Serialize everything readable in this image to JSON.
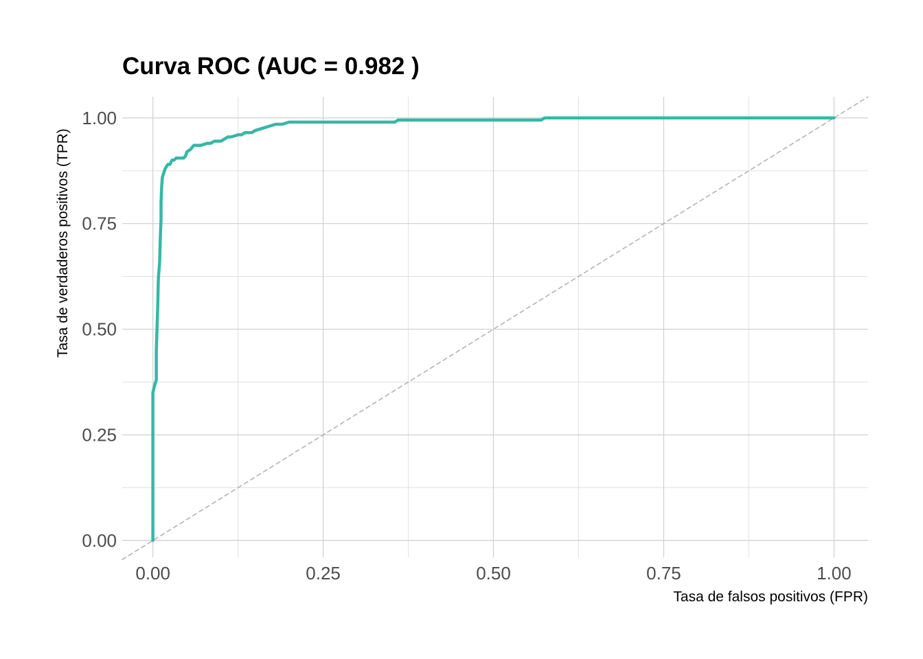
{
  "chart_data": {
    "type": "line",
    "title": "Curva ROC (AUC = 0.982 )",
    "xlabel": "Tasa de falsos positivos (FPR)",
    "ylabel": "Tasa de verdaderos positivos (TPR)",
    "xlim": [
      -0.045,
      1.05
    ],
    "ylim": [
      -0.04,
      1.05
    ],
    "x_ticks": [
      0,
      0.25,
      0.5,
      0.75,
      1
    ],
    "x_tick_labels": [
      "0.00",
      "0.25",
      "0.50",
      "0.75",
      "1.00"
    ],
    "y_ticks": [
      0,
      0.25,
      0.5,
      0.75,
      1
    ],
    "y_tick_labels": [
      "0.00",
      "0.25",
      "0.50",
      "0.75",
      "1.00"
    ],
    "grid": true,
    "legend": "none",
    "series": [
      {
        "color": "#35B8A6",
        "x": [
          0,
          0,
          0,
          0.003,
          0.005,
          0.005,
          0.007,
          0.008,
          0.01,
          0.011,
          0.012,
          0.012,
          0.013,
          0.014,
          0.016,
          0.018,
          0.02,
          0.022,
          0.025,
          0.028,
          0.031,
          0.034,
          0.038,
          0.045,
          0.048,
          0.05,
          0.055,
          0.06,
          0.065,
          0.07,
          0.08,
          0.085,
          0.09,
          0.1,
          0.105,
          0.11,
          0.115,
          0.125,
          0.13,
          0.135,
          0.145,
          0.15,
          0.16,
          0.17,
          0.18,
          0.19,
          0.2,
          0.21,
          0.25,
          0.3,
          0.355,
          0.36,
          0.45,
          0.5,
          0.57,
          0.575,
          0.8,
          1
        ],
        "y": [
          0,
          0.18,
          0.35,
          0.37,
          0.38,
          0.45,
          0.55,
          0.62,
          0.66,
          0.72,
          0.76,
          0.8,
          0.84,
          0.86,
          0.87,
          0.88,
          0.885,
          0.89,
          0.89,
          0.9,
          0.9,
          0.905,
          0.905,
          0.905,
          0.91,
          0.92,
          0.925,
          0.935,
          0.935,
          0.935,
          0.94,
          0.94,
          0.945,
          0.945,
          0.95,
          0.955,
          0.955,
          0.96,
          0.96,
          0.965,
          0.965,
          0.97,
          0.975,
          0.98,
          0.985,
          0.985,
          0.99,
          0.99,
          0.99,
          0.99,
          0.99,
          0.995,
          0.995,
          0.995,
          0.995,
          1,
          1,
          1
        ]
      },
      {
        "color": "#b3b3b3",
        "style": "dashed",
        "x": [
          -0.045,
          1.05
        ],
        "y": [
          -0.045,
          1.05
        ]
      }
    ]
  }
}
